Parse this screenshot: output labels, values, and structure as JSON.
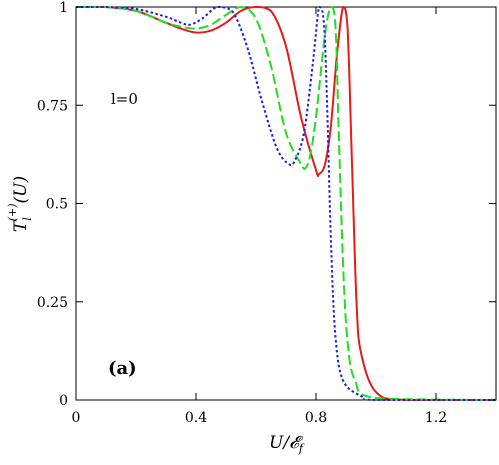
{
  "chart_data": {
    "type": "line",
    "panel_label": "(a)",
    "annotation": "l=0",
    "xlabel": "U/𝓔_f",
    "ylabel": "T_l^(+)(U)",
    "xlim": [
      0,
      1.4
    ],
    "ylim": [
      0,
      1
    ],
    "x_ticks": [
      "0",
      "0.4",
      "0.8",
      "1.2"
    ],
    "x_tick_values": [
      0,
      0.4,
      0.8,
      1.2
    ],
    "y_ticks": [
      "0",
      "0.25",
      "0.5",
      "0.75",
      "1"
    ],
    "y_tick_values": [
      0,
      0.25,
      0.5,
      0.75,
      1
    ],
    "grid": false,
    "series": [
      {
        "style": "solid",
        "color": "#e41a1c",
        "points": [
          [
            0,
            1
          ],
          [
            0.1,
            1
          ],
          [
            0.2,
            0.99
          ],
          [
            0.3,
            0.96
          ],
          [
            0.35,
            0.945
          ],
          [
            0.4,
            0.935
          ],
          [
            0.45,
            0.94
          ],
          [
            0.5,
            0.96
          ],
          [
            0.55,
            0.99
          ],
          [
            0.6,
            1
          ],
          [
            0.65,
            0.99
          ],
          [
            0.7,
            0.9
          ],
          [
            0.75,
            0.72
          ],
          [
            0.8,
            0.585
          ],
          [
            0.81,
            0.575
          ],
          [
            0.83,
            0.6
          ],
          [
            0.85,
            0.7
          ],
          [
            0.87,
            0.88
          ],
          [
            0.89,
            1
          ],
          [
            0.905,
            0.95
          ],
          [
            0.92,
            0.6
          ],
          [
            0.935,
            0.25
          ],
          [
            0.95,
            0.12
          ],
          [
            1.0,
            0.02
          ],
          [
            1.1,
            0
          ],
          [
            1.4,
            0
          ]
        ]
      },
      {
        "style": "dashed",
        "color": "#22dd22",
        "points": [
          [
            0,
            1
          ],
          [
            0.1,
            1
          ],
          [
            0.2,
            0.99
          ],
          [
            0.3,
            0.96
          ],
          [
            0.35,
            0.95
          ],
          [
            0.4,
            0.945
          ],
          [
            0.45,
            0.955
          ],
          [
            0.5,
            0.98
          ],
          [
            0.55,
            1
          ],
          [
            0.6,
            0.97
          ],
          [
            0.65,
            0.85
          ],
          [
            0.7,
            0.68
          ],
          [
            0.75,
            0.6
          ],
          [
            0.765,
            0.59
          ],
          [
            0.78,
            0.62
          ],
          [
            0.8,
            0.72
          ],
          [
            0.83,
            0.93
          ],
          [
            0.85,
            1
          ],
          [
            0.865,
            0.95
          ],
          [
            0.875,
            0.7
          ],
          [
            0.89,
            0.35
          ],
          [
            0.905,
            0.15
          ],
          [
            0.93,
            0.05
          ],
          [
            1.0,
            0.005
          ],
          [
            1.4,
            0
          ]
        ]
      },
      {
        "style": "dotted",
        "color": "#1a1aee",
        "points": [
          [
            0,
            1
          ],
          [
            0.1,
            1
          ],
          [
            0.2,
            0.995
          ],
          [
            0.3,
            0.975
          ],
          [
            0.35,
            0.96
          ],
          [
            0.38,
            0.955
          ],
          [
            0.42,
            0.97
          ],
          [
            0.47,
            1
          ],
          [
            0.52,
            0.99
          ],
          [
            0.57,
            0.9
          ],
          [
            0.62,
            0.76
          ],
          [
            0.67,
            0.64
          ],
          [
            0.71,
            0.6
          ],
          [
            0.73,
            0.61
          ],
          [
            0.76,
            0.68
          ],
          [
            0.79,
            0.86
          ],
          [
            0.81,
            1
          ],
          [
            0.825,
            0.97
          ],
          [
            0.835,
            0.8
          ],
          [
            0.85,
            0.4
          ],
          [
            0.865,
            0.16
          ],
          [
            0.89,
            0.05
          ],
          [
            0.95,
            0.01
          ],
          [
            1.0,
            0
          ],
          [
            1.4,
            0
          ]
        ]
      }
    ]
  }
}
